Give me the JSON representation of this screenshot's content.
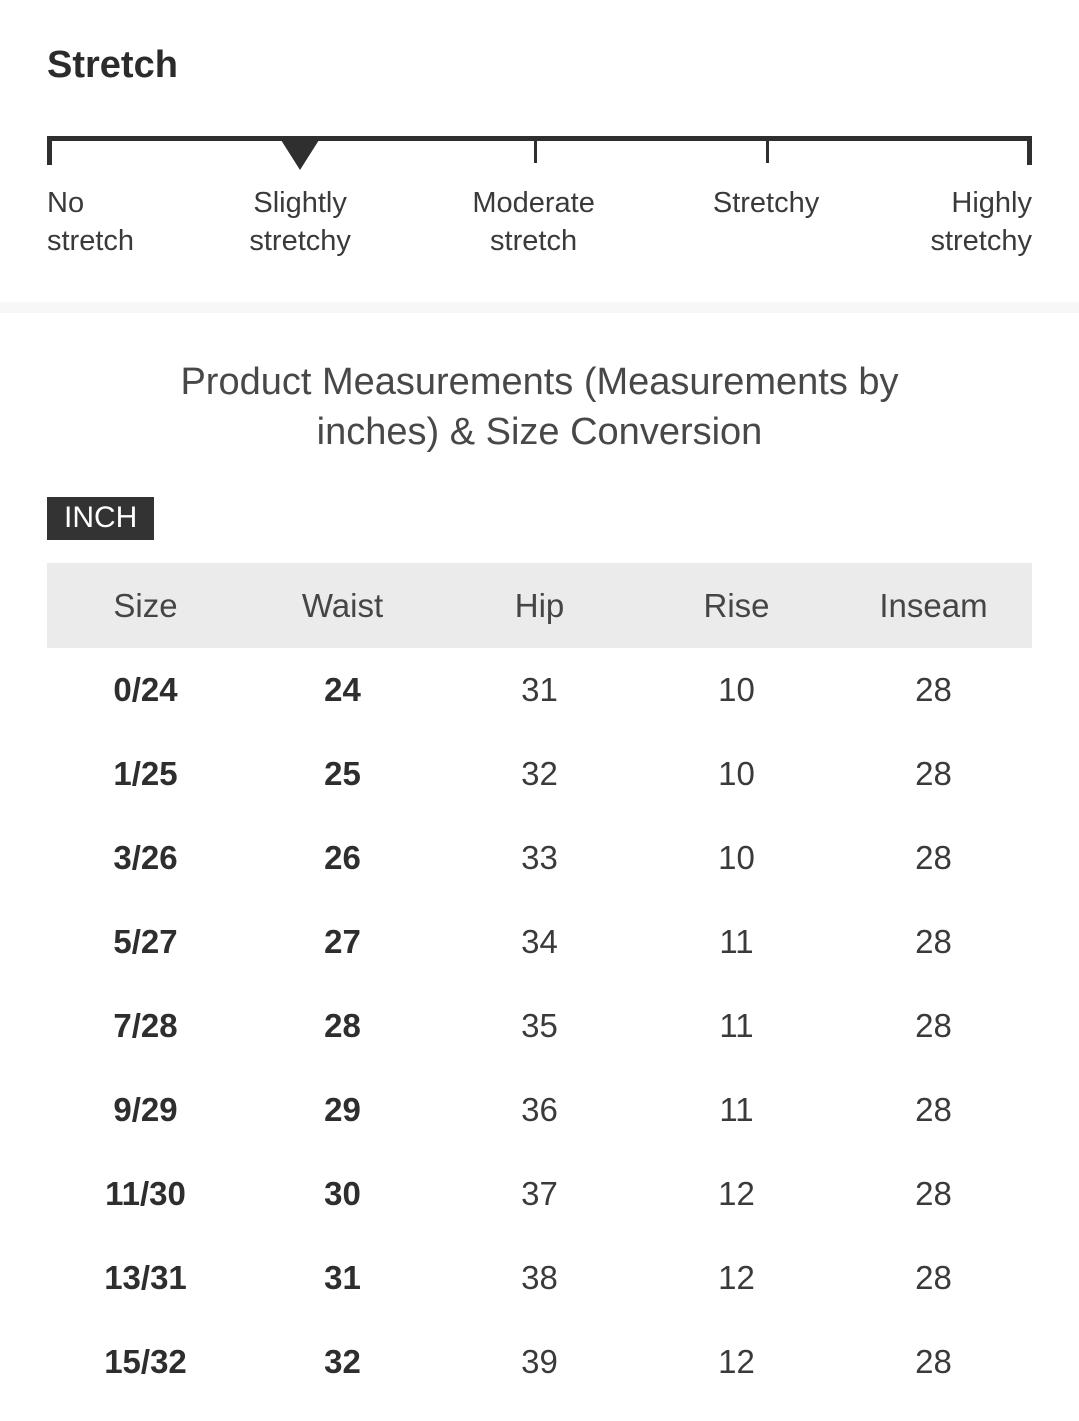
{
  "stretch": {
    "title": "Stretch",
    "selected_index": 1,
    "selected_label": "Slightly stretchy",
    "options": [
      {
        "label": "No\nstretch"
      },
      {
        "label": "Slightly\nstretchy"
      },
      {
        "label": "Moderate\nstretch"
      },
      {
        "label": "Stretchy"
      },
      {
        "label": "Highly\nstretchy"
      }
    ]
  },
  "measurements": {
    "title": "Product Measurements (Measurements by inches) & Size Conversion",
    "unit_label": "INCH",
    "table": {
      "columns": [
        "Size",
        "Waist",
        "Hip",
        "Rise",
        "Inseam"
      ],
      "rows": [
        [
          "0/24",
          "24",
          "31",
          "10",
          "28"
        ],
        [
          "1/25",
          "25",
          "32",
          "10",
          "28"
        ],
        [
          "3/26",
          "26",
          "33",
          "10",
          "28"
        ],
        [
          "5/27",
          "27",
          "34",
          "11",
          "28"
        ],
        [
          "7/28",
          "28",
          "35",
          "11",
          "28"
        ],
        [
          "9/29",
          "29",
          "36",
          "11",
          "28"
        ],
        [
          "11/30",
          "30",
          "37",
          "12",
          "28"
        ],
        [
          "13/31",
          "31",
          "38",
          "12",
          "28"
        ],
        [
          "15/32",
          "32",
          "39",
          "12",
          "28"
        ]
      ]
    }
  },
  "colors": {
    "scale_bar": "#2f2f2f",
    "heading_text": "#2b2b2b",
    "label_text": "#3a3a3a",
    "divider_bg": "#f7f7f8",
    "title_text": "#484848",
    "badge_bg": "#333333",
    "badge_text": "#ffffff",
    "table_header_bg": "#ebebeb"
  }
}
